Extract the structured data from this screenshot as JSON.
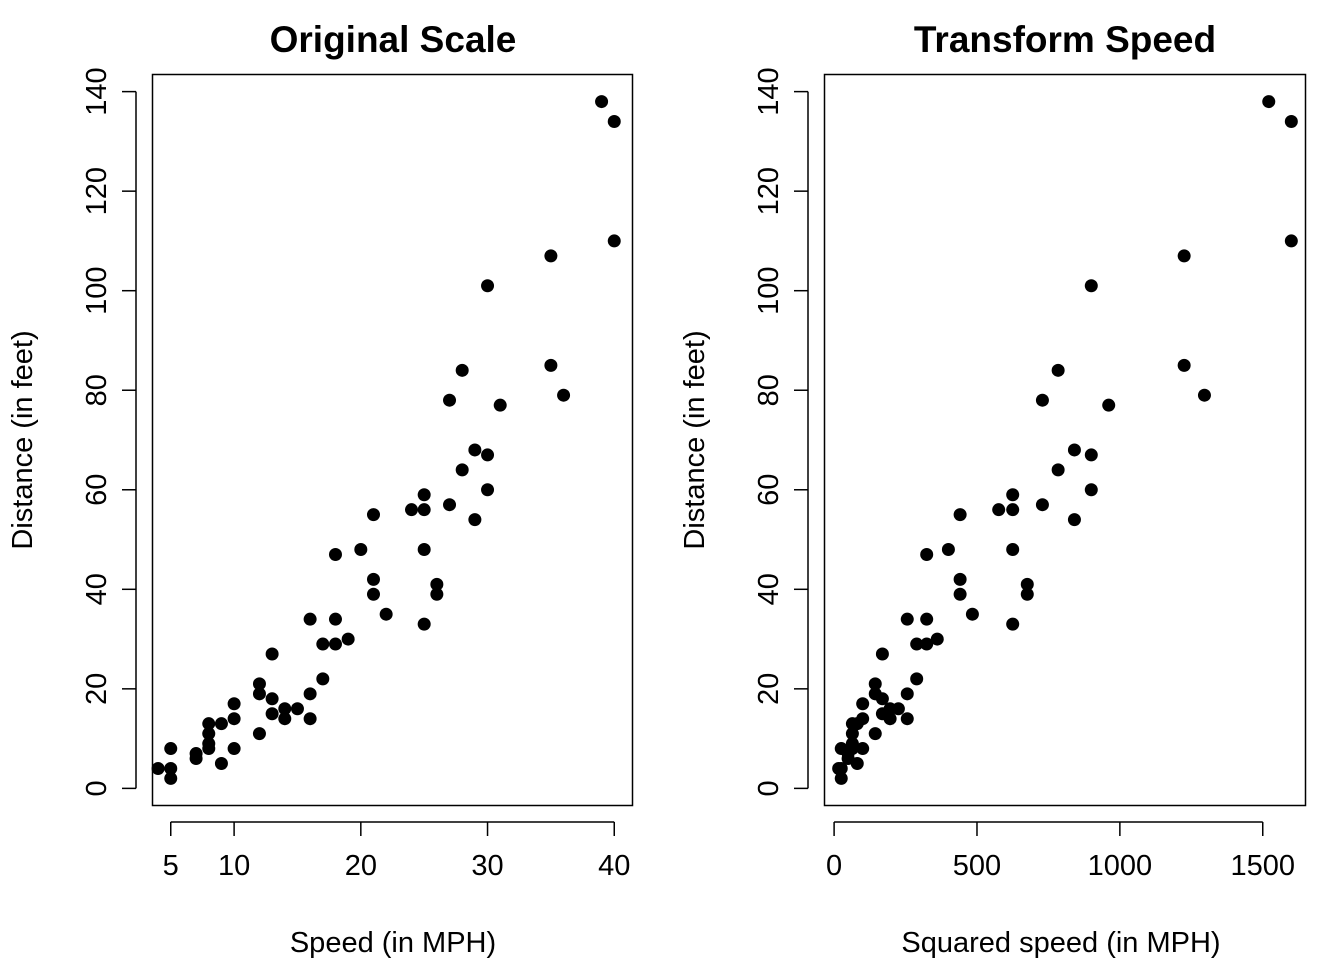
{
  "colors": {
    "point": "#000000",
    "axis": "#000000",
    "background": "#ffffff"
  },
  "chart_data": [
    {
      "type": "scatter",
      "title": "Original Scale",
      "xlabel": "Speed (in MPH)",
      "ylabel": "Distance (in feet)",
      "xlim": [
        3.56,
        41.44
      ],
      "ylim": [
        -3.44,
        143.44
      ],
      "xticks": [
        5,
        10,
        20,
        30,
        40
      ],
      "yticks": [
        0,
        20,
        40,
        60,
        80,
        100,
        120,
        140
      ],
      "grid": false,
      "points": [
        [
          4,
          4
        ],
        [
          5,
          2
        ],
        [
          5,
          4
        ],
        [
          5,
          8
        ],
        [
          7,
          7
        ],
        [
          7,
          6
        ],
        [
          8,
          8
        ],
        [
          8,
          9
        ],
        [
          8,
          11
        ],
        [
          8,
          13
        ],
        [
          9,
          5
        ],
        [
          9,
          13
        ],
        [
          10,
          8
        ],
        [
          10,
          14
        ],
        [
          10,
          17
        ],
        [
          12,
          11
        ],
        [
          12,
          19
        ],
        [
          12,
          21
        ],
        [
          13,
          15
        ],
        [
          13,
          18
        ],
        [
          13,
          27
        ],
        [
          14,
          14
        ],
        [
          14,
          16
        ],
        [
          15,
          16
        ],
        [
          16,
          14
        ],
        [
          16,
          19
        ],
        [
          16,
          34
        ],
        [
          17,
          22
        ],
        [
          17,
          29
        ],
        [
          18,
          29
        ],
        [
          18,
          34
        ],
        [
          18,
          47
        ],
        [
          19,
          30
        ],
        [
          20,
          48
        ],
        [
          21,
          39
        ],
        [
          21,
          42
        ],
        [
          21,
          55
        ],
        [
          22,
          35
        ],
        [
          24,
          56
        ],
        [
          25,
          33
        ],
        [
          25,
          48
        ],
        [
          25,
          56
        ],
        [
          25,
          59
        ],
        [
          26,
          39
        ],
        [
          26,
          41
        ],
        [
          27,
          57
        ],
        [
          27,
          78
        ],
        [
          28,
          64
        ],
        [
          28,
          84
        ],
        [
          29,
          54
        ],
        [
          29,
          68
        ],
        [
          30,
          60
        ],
        [
          30,
          67
        ],
        [
          30,
          101
        ],
        [
          31,
          77
        ],
        [
          35,
          85
        ],
        [
          35,
          107
        ],
        [
          36,
          79
        ],
        [
          39,
          138
        ],
        [
          40,
          110
        ],
        [
          40,
          134
        ]
      ]
    },
    {
      "type": "scatter",
      "title": "Transform Speed",
      "xlabel": "Squared speed (in MPH)",
      "ylabel": "Distance (in feet)",
      "xlim": [
        -33.6,
        1649.6
      ],
      "ylim": [
        -3.44,
        143.44
      ],
      "xticks": [
        0,
        500,
        1000,
        1500
      ],
      "yticks": [
        0,
        20,
        40,
        60,
        80,
        100,
        120,
        140
      ],
      "grid": false,
      "points": [
        [
          16,
          4
        ],
        [
          25,
          2
        ],
        [
          25,
          4
        ],
        [
          25,
          8
        ],
        [
          49,
          7
        ],
        [
          49,
          6
        ],
        [
          64,
          8
        ],
        [
          64,
          9
        ],
        [
          64,
          11
        ],
        [
          64,
          13
        ],
        [
          81,
          5
        ],
        [
          81,
          13
        ],
        [
          100,
          8
        ],
        [
          100,
          14
        ],
        [
          100,
          17
        ],
        [
          144,
          11
        ],
        [
          144,
          19
        ],
        [
          144,
          21
        ],
        [
          169,
          15
        ],
        [
          169,
          18
        ],
        [
          169,
          27
        ],
        [
          196,
          14
        ],
        [
          196,
          16
        ],
        [
          225,
          16
        ],
        [
          256,
          14
        ],
        [
          256,
          19
        ],
        [
          256,
          34
        ],
        [
          289,
          22
        ],
        [
          289,
          29
        ],
        [
          324,
          29
        ],
        [
          324,
          34
        ],
        [
          324,
          47
        ],
        [
          361,
          30
        ],
        [
          400,
          48
        ],
        [
          441,
          39
        ],
        [
          441,
          42
        ],
        [
          441,
          55
        ],
        [
          484,
          35
        ],
        [
          576,
          56
        ],
        [
          625,
          33
        ],
        [
          625,
          48
        ],
        [
          625,
          56
        ],
        [
          625,
          59
        ],
        [
          676,
          39
        ],
        [
          676,
          41
        ],
        [
          729,
          57
        ],
        [
          729,
          78
        ],
        [
          784,
          64
        ],
        [
          784,
          84
        ],
        [
          841,
          54
        ],
        [
          841,
          68
        ],
        [
          900,
          60
        ],
        [
          900,
          67
        ],
        [
          900,
          101
        ],
        [
          961,
          77
        ],
        [
          1225,
          85
        ],
        [
          1225,
          107
        ],
        [
          1296,
          79
        ],
        [
          1521,
          138
        ],
        [
          1600,
          110
        ],
        [
          1600,
          134
        ]
      ]
    }
  ]
}
